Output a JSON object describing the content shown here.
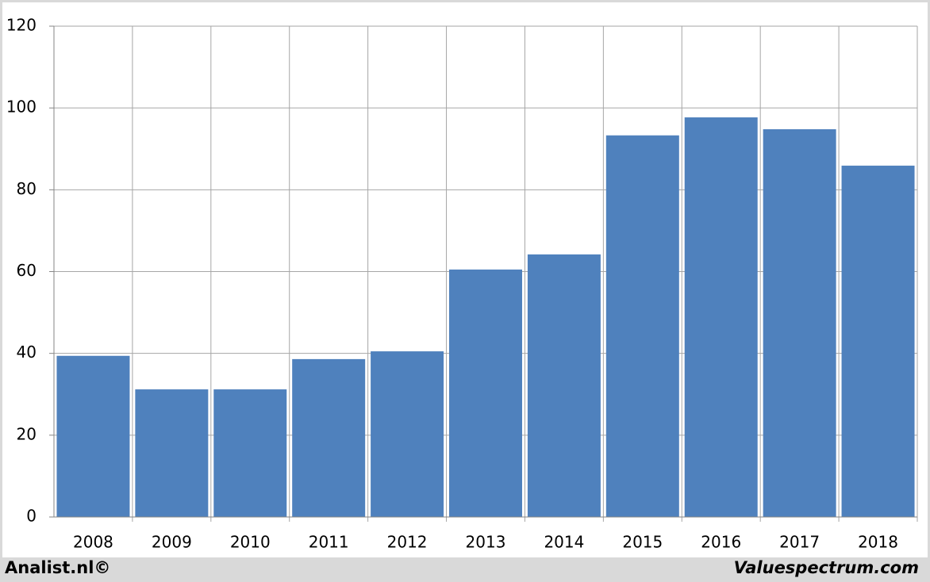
{
  "chart_data": {
    "type": "bar",
    "categories": [
      "2008",
      "2009",
      "2010",
      "2011",
      "2012",
      "2013",
      "2014",
      "2015",
      "2016",
      "2017",
      "2018"
    ],
    "values": [
      39.4,
      31.2,
      31.2,
      38.6,
      40.5,
      60.5,
      64.2,
      93.3,
      97.7,
      94.8,
      85.9
    ],
    "color": "#4f81bd",
    "ylim": [
      0,
      120
    ],
    "yticks": [
      0,
      20,
      40,
      60,
      80,
      100,
      120
    ],
    "grid": true
  },
  "footer": {
    "left": "Analist.nl©",
    "right": "Valuespectrum.com"
  }
}
